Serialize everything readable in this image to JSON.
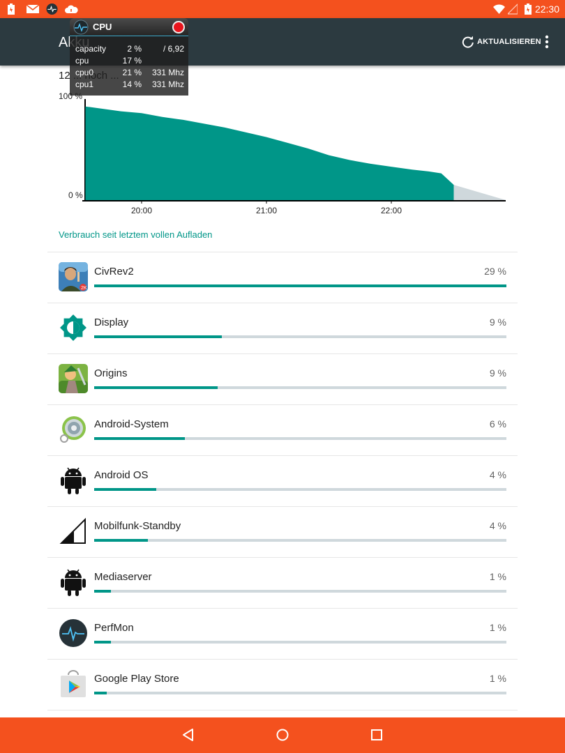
{
  "status_bar": {
    "time": "22:30",
    "icons": [
      "battery-charging-icon",
      "email-icon",
      "perfmon-icon",
      "cloud-icon",
      "wifi-icon",
      "signal-icon",
      "battery-icon"
    ]
  },
  "app_bar": {
    "title": "Akku",
    "refresh_label": "AKTUALISIEREN"
  },
  "subtitle": "12 ... noch ...",
  "cpu_overlay": {
    "title": "CPU",
    "rows": [
      {
        "label": "capacity",
        "value": "2 %",
        "extra": "/ 6,92"
      },
      {
        "label": "cpu",
        "value": "17 %",
        "extra": ""
      },
      {
        "label": "cpu0",
        "value": "21 %",
        "extra": "331 Mhz"
      },
      {
        "label": "cpu1",
        "value": "14 %",
        "extra": "331 Mhz"
      }
    ]
  },
  "chart_data": {
    "type": "area",
    "y_top_label": "100 %",
    "y_bottom_label": "0 %",
    "x_tick_labels": [
      "20:00",
      "21:00",
      "22:00"
    ],
    "ylim": [
      0,
      100
    ],
    "series": [
      {
        "color": "#009688",
        "x": [
          "19:33",
          "19:40",
          "19:50",
          "20:00",
          "20:10",
          "20:20",
          "20:30",
          "20:40",
          "20:50",
          "21:00",
          "21:10",
          "21:20",
          "21:30",
          "21:40",
          "21:50",
          "22:00",
          "22:10",
          "22:18",
          "22:24",
          "22:30"
        ],
        "values": [
          98,
          96,
          93,
          91,
          87,
          84,
          80,
          76,
          71,
          66,
          60,
          54,
          47,
          42,
          38,
          35,
          32,
          30,
          28,
          16
        ]
      },
      {
        "color": "#cfd8dc",
        "x": [
          "22:30",
          "22:55"
        ],
        "values": [
          16,
          0
        ]
      }
    ]
  },
  "section_title": "Verbrauch seit letztem vollen Aufladen",
  "items": [
    {
      "name": "CivRev2",
      "percent": "29 %",
      "bar": 1.0,
      "icon": "civrev2-icon"
    },
    {
      "name": "Display",
      "percent": "9 %",
      "bar": 0.31,
      "icon": "display-brightness-icon"
    },
    {
      "name": "Origins",
      "percent": "9 %",
      "bar": 0.3,
      "icon": "origins-icon"
    },
    {
      "name": "Android-System",
      "percent": "6 %",
      "bar": 0.22,
      "icon": "android-system-icon"
    },
    {
      "name": "Android OS",
      "percent": "4 %",
      "bar": 0.15,
      "icon": "android-icon"
    },
    {
      "name": "Mobilfunk-Standby",
      "percent": "4 %",
      "bar": 0.13,
      "icon": "cell-signal-icon"
    },
    {
      "name": "Mediaserver",
      "percent": "1 %",
      "bar": 0.04,
      "icon": "android-icon"
    },
    {
      "name": "PerfMon",
      "percent": "1 %",
      "bar": 0.04,
      "icon": "perfmon-icon"
    },
    {
      "name": "Google Play Store",
      "percent": "1 %",
      "bar": 0.03,
      "icon": "play-store-icon"
    }
  ],
  "colors": {
    "accent": "#009688",
    "status_bar": "#f4511e",
    "app_bar": "#2c3a40",
    "bar_track": "#cfd8dc"
  },
  "nav_bar": {
    "icons": [
      "back-icon",
      "home-icon",
      "recents-icon"
    ]
  }
}
